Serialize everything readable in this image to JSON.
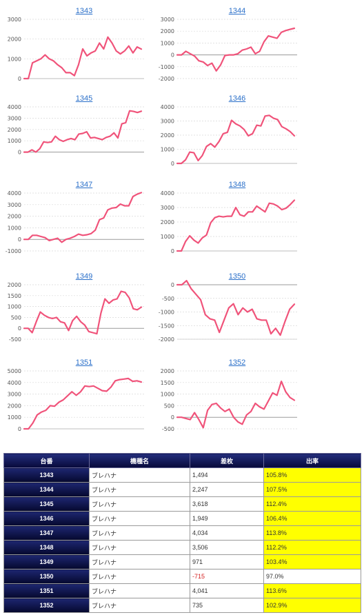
{
  "colors": {
    "line": "#f0537a",
    "title_link": "#2a6fc9",
    "header_bg": "#0f1560",
    "highlight": "#ffff00",
    "negative": "#d42020"
  },
  "chart_data": [
    {
      "type": "line",
      "title": "1343",
      "ylim": [
        0,
        3000
      ],
      "yticks": [
        0,
        1000,
        2000,
        3000
      ],
      "values": [
        0,
        0,
        800,
        900,
        1000,
        1200,
        1000,
        900,
        700,
        550,
        300,
        300,
        150,
        700,
        1500,
        1150,
        1300,
        1400,
        1800,
        1500,
        2100,
        1800,
        1400,
        1250,
        1400,
        1650,
        1300,
        1600,
        1494
      ]
    },
    {
      "type": "line",
      "title": "1344",
      "ylim": [
        -2000,
        3000
      ],
      "yticks": [
        -2000,
        -1000,
        0,
        1000,
        2000,
        3000
      ],
      "values": [
        0,
        0,
        300,
        100,
        -100,
        -500,
        -600,
        -900,
        -700,
        -1350,
        -850,
        -50,
        0,
        0,
        100,
        400,
        500,
        650,
        100,
        300,
        1100,
        1600,
        1500,
        1400,
        1900,
        2050,
        2150,
        2247
      ]
    },
    {
      "type": "line",
      "title": "1345",
      "ylim": [
        -1000,
        4000
      ],
      "yticks": [
        0,
        1000,
        2000,
        3000,
        4000
      ],
      "values": [
        0,
        0,
        200,
        0,
        300,
        900,
        850,
        900,
        1400,
        1100,
        950,
        1100,
        1200,
        1100,
        1600,
        1650,
        1800,
        1250,
        1300,
        1200,
        1100,
        1300,
        1400,
        1700,
        1250,
        2500,
        2600,
        3650,
        3600,
        3500,
        3618
      ]
    },
    {
      "type": "line",
      "title": "1346",
      "ylim": [
        0,
        4000
      ],
      "yticks": [
        0,
        1000,
        2000,
        3000,
        4000
      ],
      "values": [
        0,
        0,
        250,
        800,
        750,
        200,
        550,
        1200,
        1400,
        1150,
        1550,
        2100,
        2200,
        3050,
        2800,
        2650,
        2400,
        1950,
        2100,
        2700,
        2650,
        3350,
        3400,
        3200,
        3100,
        2600,
        2450,
        2250,
        1949
      ]
    },
    {
      "type": "line",
      "title": "1347",
      "ylim": [
        -1000,
        4000
      ],
      "yticks": [
        -1000,
        0,
        1000,
        2000,
        3000,
        4000
      ],
      "values": [
        0,
        0,
        350,
        350,
        250,
        150,
        -100,
        0,
        100,
        -250,
        0,
        100,
        250,
        450,
        350,
        400,
        500,
        800,
        1700,
        1850,
        2550,
        2700,
        2750,
        3050,
        2900,
        2900,
        3700,
        3900,
        4034
      ]
    },
    {
      "type": "line",
      "title": "1348",
      "ylim": [
        0,
        4000
      ],
      "yticks": [
        0,
        1000,
        2000,
        3000,
        4000
      ],
      "values": [
        0,
        0,
        650,
        1050,
        750,
        550,
        900,
        1100,
        1950,
        2300,
        2400,
        2350,
        2400,
        2400,
        3000,
        2500,
        2400,
        2700,
        2700,
        3100,
        2900,
        2700,
        3300,
        3250,
        3100,
        2850,
        2950,
        3200,
        3506
      ]
    },
    {
      "type": "line",
      "title": "1349",
      "ylim": [
        -500,
        2000
      ],
      "yticks": [
        -500,
        0,
        500,
        1000,
        1500,
        2000
      ],
      "values": [
        0,
        0,
        -200,
        300,
        750,
        600,
        500,
        450,
        500,
        300,
        250,
        -100,
        350,
        550,
        300,
        150,
        -150,
        -200,
        -250,
        700,
        1350,
        1150,
        1300,
        1350,
        1700,
        1650,
        1400,
        900,
        850,
        971
      ]
    },
    {
      "type": "line",
      "title": "1350",
      "ylim": [
        -2000,
        0
      ],
      "yticks": [
        -2000,
        -1500,
        -1000,
        -500,
        0
      ],
      "values": [
        0,
        0,
        150,
        -150,
        -350,
        -550,
        -1100,
        -1250,
        -1300,
        -1750,
        -1300,
        -850,
        -700,
        -1100,
        -850,
        -1000,
        -900,
        -1250,
        -1300,
        -1300,
        -1800,
        -1600,
        -1850,
        -1350,
        -900,
        -715
      ]
    },
    {
      "type": "line",
      "title": "1351",
      "ylim": [
        0,
        5000
      ],
      "yticks": [
        0,
        1000,
        2000,
        3000,
        4000,
        5000
      ],
      "values": [
        0,
        0,
        500,
        1200,
        1450,
        1600,
        2000,
        1950,
        2300,
        2500,
        2850,
        3200,
        2900,
        3200,
        3700,
        3650,
        3700,
        3500,
        3300,
        3250,
        3600,
        4150,
        4250,
        4300,
        4350,
        4100,
        4150,
        4041
      ]
    },
    {
      "type": "line",
      "title": "1352",
      "ylim": [
        -500,
        2000
      ],
      "yticks": [
        -500,
        0,
        500,
        1000,
        1500,
        2000
      ],
      "values": [
        0,
        0,
        -50,
        -100,
        200,
        -100,
        -450,
        300,
        550,
        600,
        400,
        250,
        350,
        0,
        -200,
        -300,
        100,
        250,
        600,
        450,
        350,
        700,
        1050,
        950,
        1550,
        1100,
        850,
        735
      ]
    }
  ],
  "table": {
    "headers": {
      "id": "台番",
      "model": "機種名",
      "diff": "差枚",
      "rate": "出率"
    },
    "rows": [
      {
        "id": "1343",
        "model": "ブレハナ",
        "diff": "1,494",
        "rate": "105.8%",
        "negative": false,
        "highlight": true
      },
      {
        "id": "1344",
        "model": "ブレハナ",
        "diff": "2,247",
        "rate": "107.5%",
        "negative": false,
        "highlight": true
      },
      {
        "id": "1345",
        "model": "ブレハナ",
        "diff": "3,618",
        "rate": "112.4%",
        "negative": false,
        "highlight": true
      },
      {
        "id": "1346",
        "model": "ブレハナ",
        "diff": "1,949",
        "rate": "106.4%",
        "negative": false,
        "highlight": true
      },
      {
        "id": "1347",
        "model": "ブレハナ",
        "diff": "4,034",
        "rate": "113.8%",
        "negative": false,
        "highlight": true
      },
      {
        "id": "1348",
        "model": "ブレハナ",
        "diff": "3,506",
        "rate": "112.2%",
        "negative": false,
        "highlight": true
      },
      {
        "id": "1349",
        "model": "ブレハナ",
        "diff": "971",
        "rate": "103.4%",
        "negative": false,
        "highlight": true
      },
      {
        "id": "1350",
        "model": "ブレハナ",
        "diff": "-715",
        "rate": "97.0%",
        "negative": true,
        "highlight": false
      },
      {
        "id": "1351",
        "model": "ブレハナ",
        "diff": "4,041",
        "rate": "113.6%",
        "negative": false,
        "highlight": true
      },
      {
        "id": "1352",
        "model": "ブレハナ",
        "diff": "735",
        "rate": "102.9%",
        "negative": false,
        "highlight": true
      }
    ]
  }
}
